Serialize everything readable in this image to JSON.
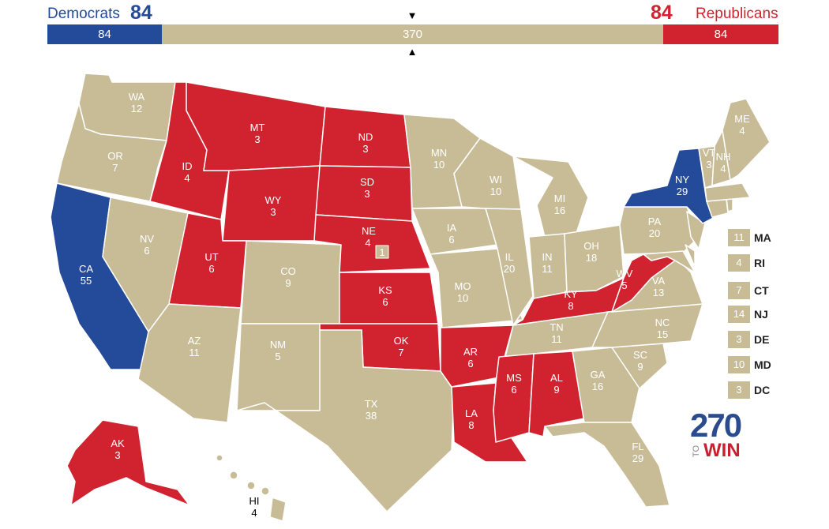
{
  "header": {
    "dem_label": "Democrats",
    "dem_total": "84",
    "rep_total": "84",
    "rep_label": "Republicans"
  },
  "bar": {
    "dem": "84",
    "toss": "370",
    "rep": "84"
  },
  "colors": {
    "dem": "#244a9a",
    "rep": "#d1232f",
    "toss": "#c8bc97"
  },
  "states": [
    {
      "abbr": "WA",
      "ev": "12",
      "party": "toss"
    },
    {
      "abbr": "OR",
      "ev": "7",
      "party": "toss"
    },
    {
      "abbr": "CA",
      "ev": "55",
      "party": "dem"
    },
    {
      "abbr": "NV",
      "ev": "6",
      "party": "toss"
    },
    {
      "abbr": "ID",
      "ev": "4",
      "party": "rep"
    },
    {
      "abbr": "MT",
      "ev": "3",
      "party": "rep"
    },
    {
      "abbr": "WY",
      "ev": "3",
      "party": "rep"
    },
    {
      "abbr": "UT",
      "ev": "6",
      "party": "rep"
    },
    {
      "abbr": "AZ",
      "ev": "11",
      "party": "toss"
    },
    {
      "abbr": "CO",
      "ev": "9",
      "party": "toss"
    },
    {
      "abbr": "NM",
      "ev": "5",
      "party": "toss"
    },
    {
      "abbr": "ND",
      "ev": "3",
      "party": "rep"
    },
    {
      "abbr": "SD",
      "ev": "3",
      "party": "rep"
    },
    {
      "abbr": "NE",
      "ev": "4",
      "party": "rep"
    },
    {
      "abbr": "KS",
      "ev": "6",
      "party": "rep"
    },
    {
      "abbr": "OK",
      "ev": "7",
      "party": "rep"
    },
    {
      "abbr": "TX",
      "ev": "38",
      "party": "toss"
    },
    {
      "abbr": "MN",
      "ev": "10",
      "party": "toss"
    },
    {
      "abbr": "IA",
      "ev": "6",
      "party": "toss"
    },
    {
      "abbr": "MO",
      "ev": "10",
      "party": "toss"
    },
    {
      "abbr": "AR",
      "ev": "6",
      "party": "rep"
    },
    {
      "abbr": "LA",
      "ev": "8",
      "party": "rep"
    },
    {
      "abbr": "WI",
      "ev": "10",
      "party": "toss"
    },
    {
      "abbr": "IL",
      "ev": "20",
      "party": "toss"
    },
    {
      "abbr": "MI",
      "ev": "16",
      "party": "toss"
    },
    {
      "abbr": "IN",
      "ev": "11",
      "party": "toss"
    },
    {
      "abbr": "OH",
      "ev": "18",
      "party": "toss"
    },
    {
      "abbr": "KY",
      "ev": "8",
      "party": "rep"
    },
    {
      "abbr": "TN",
      "ev": "11",
      "party": "toss"
    },
    {
      "abbr": "MS",
      "ev": "6",
      "party": "rep"
    },
    {
      "abbr": "AL",
      "ev": "9",
      "party": "rep"
    },
    {
      "abbr": "GA",
      "ev": "16",
      "party": "toss"
    },
    {
      "abbr": "FL",
      "ev": "29",
      "party": "toss"
    },
    {
      "abbr": "SC",
      "ev": "9",
      "party": "toss"
    },
    {
      "abbr": "NC",
      "ev": "15",
      "party": "toss"
    },
    {
      "abbr": "VA",
      "ev": "13",
      "party": "toss"
    },
    {
      "abbr": "WV",
      "ev": "5",
      "party": "rep"
    },
    {
      "abbr": "PA",
      "ev": "20",
      "party": "toss"
    },
    {
      "abbr": "NY",
      "ev": "29",
      "party": "dem"
    },
    {
      "abbr": "VT",
      "ev": "3",
      "party": "toss"
    },
    {
      "abbr": "NH",
      "ev": "4",
      "party": "toss"
    },
    {
      "abbr": "ME",
      "ev": "4",
      "party": "toss"
    },
    {
      "abbr": "AK",
      "ev": "3",
      "party": "rep"
    },
    {
      "abbr": "HI",
      "ev": "4",
      "party": "toss"
    }
  ],
  "ne_district": "1",
  "small_states": [
    {
      "abbr": "MA",
      "ev": "11"
    },
    {
      "abbr": "RI",
      "ev": "4"
    },
    {
      "abbr": "CT",
      "ev": "7"
    },
    {
      "abbr": "NJ",
      "ev": "14"
    },
    {
      "abbr": "DE",
      "ev": "3"
    },
    {
      "abbr": "MD",
      "ev": "10"
    },
    {
      "abbr": "DC",
      "ev": "3"
    }
  ],
  "logo": {
    "number": "270",
    "to": "TO",
    "win": "WIN"
  }
}
